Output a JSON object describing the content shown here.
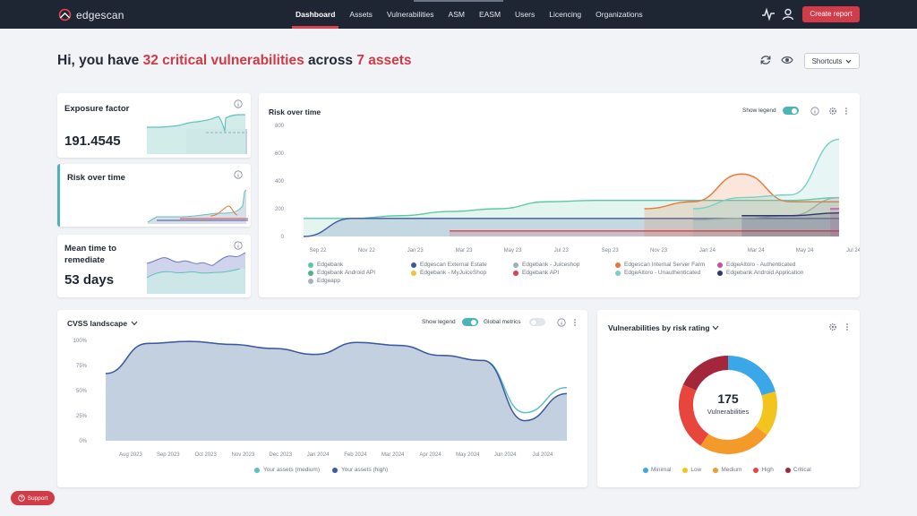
{
  "brand": {
    "name": "edgescan"
  },
  "nav": {
    "items": [
      {
        "label": "Dashboard",
        "active": true
      },
      {
        "label": "Assets"
      },
      {
        "label": "Vulnerabilities"
      },
      {
        "label": "ASM"
      },
      {
        "label": "EASM"
      },
      {
        "label": "Users"
      },
      {
        "label": "Licencing"
      },
      {
        "label": "Organizations"
      }
    ],
    "create_report": "Create report",
    "icons": [
      "activity-icon",
      "user-icon"
    ]
  },
  "headline": {
    "prefix": "Hi, you have ",
    "critical": "32 critical vulnerabilities",
    "middle": " across ",
    "assets": "7 assets"
  },
  "header_actions": {
    "shortcuts": "Shortcuts",
    "icons": [
      "refresh-icon",
      "eye-icon"
    ]
  },
  "summary_cards": {
    "exposure": {
      "title": "Exposure factor",
      "value": "191.4545"
    },
    "risk": {
      "title": "Risk over time"
    },
    "mttr": {
      "title_line1": "Mean time to",
      "title_line2": "remediate",
      "value": "53 days"
    }
  },
  "risk_chart": {
    "title": "Risk over time",
    "show_legend_label": "Show legend",
    "show_legend_on": true,
    "colors": {
      "Edgebank": "#5cc7a8",
      "Edgebank Android API": "#4fb38a",
      "Edgeapp": "#a8b1bc",
      "Edgescan External Estate": "#3f57a3",
      "Edgebank - MyJuiceShop": "#f0c33c",
      "Edgebank - Juiceshop": "#a3acb8",
      "Edgebank API": "#d9424f",
      "Edgescan Internal Server Farm": "#e8763a",
      "EdgeAltoro - Unauthenticated": "#79cfc9",
      "EdgeAltoro - Authenticated": "#c64fa8",
      "Edgebank Android Application": "#2d3a6b"
    },
    "legend_columns": [
      [
        "Edgebank",
        "Edgebank Android API",
        "Edgeapp"
      ],
      [
        "Edgescan External Estate",
        "Edgebank - MyJuiceShop"
      ],
      [
        "Edgebank - Juiceshop",
        "Edgebank API"
      ],
      [
        "Edgescan Internal Server Farm",
        "EdgeAltoro - Unauthenticated"
      ],
      [
        "EdgeAltoro - Authenticated",
        "Edgebank Android Application"
      ]
    ]
  },
  "chart_data": [
    {
      "type": "area",
      "title": "Risk over time",
      "xlabel": "",
      "ylabel": "",
      "x": [
        "Sep 22",
        "Nov 22",
        "Jan 23",
        "Mar 23",
        "May 23",
        "Jul 23",
        "Sep 23",
        "Nov 23",
        "Jan 24",
        "Mar 24",
        "May 24",
        "Jul 24"
      ],
      "y_ticks": [
        "0",
        "200",
        "400",
        "600",
        "800"
      ],
      "ylim": [
        0,
        800
      ],
      "grid": false,
      "legend": "bottom",
      "series": [
        {
          "name": "Edgebank",
          "values": [
            130,
            130,
            150,
            180,
            200,
            250,
            260,
            260,
            260,
            260,
            260,
            280
          ]
        },
        {
          "name": "Edgescan External Estate",
          "values": [
            0,
            130,
            130,
            130,
            130,
            130,
            130,
            130,
            130,
            130,
            130,
            130
          ]
        },
        {
          "name": "Edgebank - Juiceshop",
          "values": [
            null,
            null,
            null,
            null,
            null,
            null,
            null,
            null,
            120,
            130,
            150,
            280
          ]
        },
        {
          "name": "Edgescan Internal Server Farm",
          "values": [
            null,
            null,
            null,
            null,
            null,
            null,
            null,
            200,
            250,
            450,
            250,
            250
          ]
        },
        {
          "name": "EdgeAltoro - Unauthenticated",
          "values": [
            null,
            null,
            null,
            null,
            null,
            null,
            null,
            null,
            200,
            280,
            300,
            700
          ]
        },
        {
          "name": "Edgebank API",
          "values": [
            null,
            null,
            null,
            40,
            40,
            40,
            40,
            40,
            40,
            40,
            40,
            40
          ]
        },
        {
          "name": "EdgeAltoro - Authenticated",
          "values": [
            null,
            null,
            null,
            null,
            null,
            null,
            null,
            null,
            null,
            null,
            null,
            200
          ]
        },
        {
          "name": "Edgebank Android Application",
          "values": [
            null,
            null,
            null,
            null,
            null,
            null,
            null,
            null,
            null,
            150,
            150,
            170
          ]
        }
      ]
    },
    {
      "type": "area",
      "title": "CVSS landscape",
      "x": [
        "Aug 2023",
        "Sep 2023",
        "Oct 2023",
        "Nov 2023",
        "Dec 2023",
        "Jan 2024",
        "Feb 2024",
        "Mar 2024",
        "Apr 2024",
        "May 2024",
        "Jun 2024",
        "Jul 2024"
      ],
      "y_ticks": [
        "0%",
        "25%",
        "50%",
        "75%",
        "100%"
      ],
      "ylim": [
        0,
        100
      ],
      "legend": "bottom",
      "series": [
        {
          "name": "Your assets (medium)",
          "values": [
            67,
            97,
            99,
            96,
            92,
            86,
            98,
            95,
            85,
            80,
            28,
            53
          ]
        },
        {
          "name": "Your assets (high)",
          "values": [
            67,
            97,
            99,
            96,
            92,
            86,
            98,
            95,
            85,
            80,
            20,
            47
          ]
        }
      ]
    },
    {
      "type": "pie",
      "title": "Vulnerabilities by risk rating",
      "categories": [
        "Minimal",
        "Low",
        "Medium",
        "High",
        "Critical"
      ],
      "values": [
        36,
        26,
        42,
        39,
        32
      ],
      "total": 175
    }
  ],
  "cvss": {
    "title": "CVSS landscape",
    "show_legend_label": "Show legend",
    "global_metrics_label": "Global metrics",
    "legend": [
      {
        "label": "Your assets (medium)",
        "color": "#5cc2bf"
      },
      {
        "label": "Your assets (high)",
        "color": "#3f57a3"
      }
    ]
  },
  "donut": {
    "title": "Vulnerabilities by risk rating",
    "center_value": "175",
    "center_label": "Vulnerabilities",
    "legend": [
      {
        "label": "Minimal",
        "color": "#3aa7e8"
      },
      {
        "label": "Low",
        "color": "#f2c41d"
      },
      {
        "label": "Medium",
        "color": "#f39a2b"
      },
      {
        "label": "High",
        "color": "#e8453c"
      },
      {
        "label": "Critical",
        "color": "#a3263a"
      }
    ]
  },
  "support": {
    "label": "Support"
  }
}
